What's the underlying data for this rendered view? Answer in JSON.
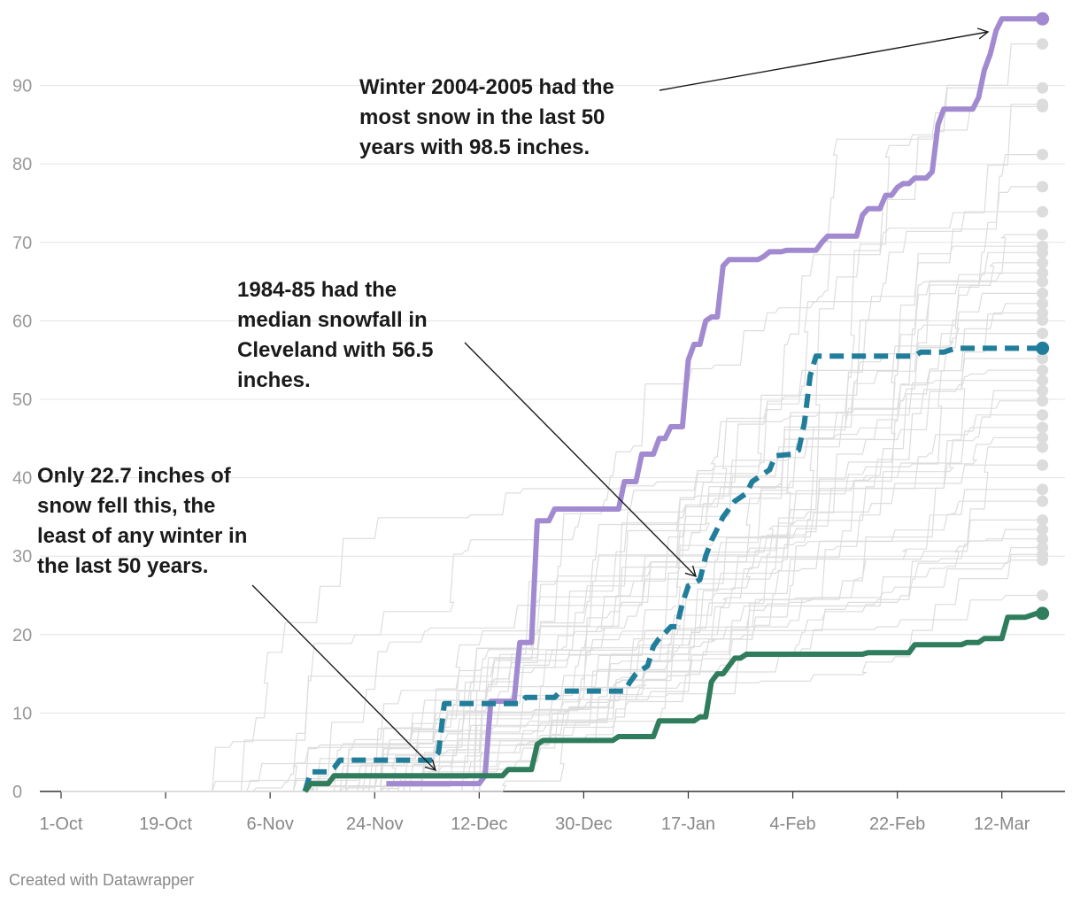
{
  "chart_data": {
    "type": "line",
    "title": "",
    "xlabel": "",
    "ylabel": "",
    "ylim": [
      0,
      99
    ],
    "y_ticks": [
      0,
      10,
      20,
      30,
      40,
      50,
      60,
      70,
      80,
      90
    ],
    "x_ticks": [
      {
        "label": "1-Oct",
        "day": 0
      },
      {
        "label": "19-Oct",
        "day": 18
      },
      {
        "label": "6-Nov",
        "day": 36
      },
      {
        "label": "24-Nov",
        "day": 54
      },
      {
        "label": "12-Dec",
        "day": 72
      },
      {
        "label": "30-Dec",
        "day": 90
      },
      {
        "label": "17-Jan",
        "day": 108
      },
      {
        "label": "4-Feb",
        "day": 126
      },
      {
        "label": "22-Feb",
        "day": 144
      },
      {
        "label": "12-Mar",
        "day": 162
      }
    ],
    "x_unit": "days since Oct 1",
    "background_final_totals": [
      95.3,
      89.7,
      87.6,
      87.3,
      81.2,
      77.1,
      73.9,
      71.0,
      69.5,
      68.7,
      67.4,
      66.1,
      65.0,
      63.5,
      62.2,
      61.0,
      60.1,
      58.4,
      55.2,
      53.7,
      52.4,
      51.1,
      49.8,
      48.0,
      46.4,
      45.1,
      43.9,
      41.6,
      38.5,
      37.0,
      34.6,
      33.4,
      32.2,
      31.1,
      30.2,
      29.5,
      25.0
    ],
    "series": [
      {
        "name": "Winter 2004-2005",
        "color": "#a28ad0",
        "dashed": false,
        "final": 98.5,
        "points": [
          [
            56,
            1
          ],
          [
            72,
            1
          ],
          [
            73,
            2
          ],
          [
            74,
            11.5
          ],
          [
            78,
            11.5
          ],
          [
            79,
            19
          ],
          [
            81,
            19
          ],
          [
            82,
            34.5
          ],
          [
            84,
            34.5
          ],
          [
            85,
            36
          ],
          [
            96,
            36
          ],
          [
            97,
            39.5
          ],
          [
            99,
            39.5
          ],
          [
            100,
            43
          ],
          [
            102,
            43
          ],
          [
            103,
            45
          ],
          [
            104,
            45
          ],
          [
            105,
            46.5
          ],
          [
            107,
            46.5
          ],
          [
            108,
            55
          ],
          [
            109,
            57
          ],
          [
            110,
            57
          ],
          [
            111,
            60
          ],
          [
            112,
            60.5
          ],
          [
            113,
            60.5
          ],
          [
            114,
            67
          ],
          [
            115,
            67.8
          ],
          [
            120,
            67.8
          ],
          [
            121,
            68.2
          ],
          [
            122,
            68.8
          ],
          [
            124,
            68.8
          ],
          [
            125,
            69
          ],
          [
            130,
            69
          ],
          [
            131,
            70
          ],
          [
            132,
            70.8
          ],
          [
            137,
            70.8
          ],
          [
            138,
            73.5
          ],
          [
            139,
            74.3
          ],
          [
            141,
            74.3
          ],
          [
            142,
            76
          ],
          [
            143,
            76
          ],
          [
            144,
            77
          ],
          [
            145,
            77.5
          ],
          [
            146,
            77.5
          ],
          [
            147,
            78.2
          ],
          [
            149,
            78.2
          ],
          [
            150,
            79
          ],
          [
            151,
            85
          ],
          [
            152,
            87
          ],
          [
            157,
            87
          ],
          [
            158,
            88.5
          ],
          [
            159,
            92
          ],
          [
            160,
            94
          ],
          [
            161,
            97
          ],
          [
            162,
            98.5
          ],
          [
            169,
            98.5
          ]
        ]
      },
      {
        "name": "1984-85",
        "color": "#217e9b",
        "dashed": true,
        "final": 56.5,
        "points": [
          [
            42,
            0
          ],
          [
            43,
            2.5
          ],
          [
            46,
            2.5
          ],
          [
            47,
            3
          ],
          [
            48,
            4
          ],
          [
            64,
            4
          ],
          [
            65,
            5
          ],
          [
            66,
            11.2
          ],
          [
            79,
            11.2
          ],
          [
            80,
            12
          ],
          [
            85,
            12
          ],
          [
            86,
            12.8
          ],
          [
            97,
            12.8
          ],
          [
            98,
            14
          ],
          [
            99,
            15
          ],
          [
            101,
            16
          ],
          [
            102,
            18.5
          ],
          [
            103,
            19.5
          ],
          [
            104,
            20.2
          ],
          [
            105,
            21
          ],
          [
            106,
            21
          ],
          [
            107,
            24
          ],
          [
            108,
            26.2
          ],
          [
            110,
            27
          ],
          [
            111,
            30
          ],
          [
            112,
            32
          ],
          [
            113,
            33.5
          ],
          [
            114,
            35
          ],
          [
            116,
            37
          ],
          [
            118,
            38
          ],
          [
            119,
            39.5
          ],
          [
            122,
            41
          ],
          [
            123,
            42.8
          ],
          [
            126,
            43
          ],
          [
            127,
            43.5
          ],
          [
            128,
            47
          ],
          [
            129,
            53
          ],
          [
            130,
            55.5
          ],
          [
            147,
            55.5
          ],
          [
            148,
            56
          ],
          [
            152,
            56
          ],
          [
            154,
            56.5
          ],
          [
            169,
            56.5
          ]
        ]
      },
      {
        "name": "This winter",
        "color": "#2f7d5c",
        "dashed": false,
        "final": 22.7,
        "points": [
          [
            42,
            0
          ],
          [
            43,
            1
          ],
          [
            46,
            1
          ],
          [
            47,
            2
          ],
          [
            76,
            2
          ],
          [
            77,
            2.8
          ],
          [
            81,
            2.8
          ],
          [
            82,
            6
          ],
          [
            83,
            6.5
          ],
          [
            95,
            6.5
          ],
          [
            96,
            7
          ],
          [
            102,
            7
          ],
          [
            103,
            9
          ],
          [
            109,
            9
          ],
          [
            110,
            9.5
          ],
          [
            111,
            9.5
          ],
          [
            112,
            14
          ],
          [
            113,
            15
          ],
          [
            114,
            15
          ],
          [
            115,
            16
          ],
          [
            116,
            17
          ],
          [
            117,
            17
          ],
          [
            118,
            17.5
          ],
          [
            138,
            17.5
          ],
          [
            139,
            17.7
          ],
          [
            146,
            17.7
          ],
          [
            147,
            18.7
          ],
          [
            155,
            18.7
          ],
          [
            156,
            19
          ],
          [
            158,
            19
          ],
          [
            159,
            19.5
          ],
          [
            162,
            19.5
          ],
          [
            163,
            22.2
          ],
          [
            166,
            22.2
          ],
          [
            168,
            22.7
          ],
          [
            169,
            22.7
          ]
        ]
      }
    ],
    "annotations": [
      {
        "id": "max",
        "text": "Winter 2004-2005 had the\nmost snow in the last 50\nyears with 98.5 inches."
      },
      {
        "id": "median",
        "text": "1984-85 had the\nmedian snowfall in\nCleveland with 56.5\ninches."
      },
      {
        "id": "min",
        "text": "Only 22.7 inches of\nsnow fell this, the\nleast of any winter in\nthe last 50 years."
      }
    ],
    "grid": true,
    "legend": "none"
  },
  "credit": "Created with Datawrapper"
}
